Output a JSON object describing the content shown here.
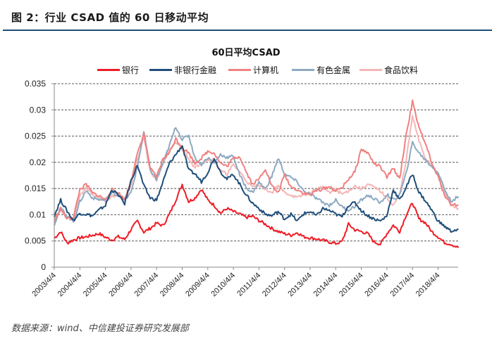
{
  "header": {
    "figure_title": "图 2：行业 CSAD 值的 60 日移动平均"
  },
  "footer": {
    "source": "数据来源：wind、中信建投证券研究发展部"
  },
  "chart_data": {
    "type": "line",
    "title": "60日平均CSAD",
    "xlabel": "",
    "ylabel": "",
    "ylim": [
      0,
      0.035
    ],
    "yticks": [
      "0",
      "0.005",
      "0.01",
      "0.015",
      "0.02",
      "0.025",
      "0.03",
      "0.035"
    ],
    "ytick_values": [
      0,
      0.005,
      0.01,
      0.015,
      0.02,
      0.025,
      0.03,
      0.035
    ],
    "xticks": [
      "2003/4/4",
      "2004/4/4",
      "2005/4/4",
      "2006/4/4",
      "2007/4/4",
      "2008/4/4",
      "2009/4/4",
      "2010/4/4",
      "2011/4/4",
      "2012/4/4",
      "2013/4/4",
      "2014/4/4",
      "2015/4/4",
      "2016/4/4",
      "2017/4/4",
      "2018/4/4"
    ],
    "x_unit": "years since 2003/4/4",
    "xlim": [
      0,
      15.8
    ],
    "grid": "horizontal dashed",
    "legend_position": "top",
    "x": [
      0,
      0.25,
      0.5,
      0.75,
      1,
      1.25,
      1.5,
      1.75,
      2,
      2.25,
      2.5,
      2.75,
      3,
      3.25,
      3.5,
      3.75,
      4,
      4.25,
      4.5,
      4.75,
      5,
      5.25,
      5.5,
      5.75,
      6,
      6.25,
      6.5,
      6.75,
      7,
      7.25,
      7.5,
      7.75,
      8,
      8.25,
      8.5,
      8.75,
      9,
      9.25,
      9.5,
      9.75,
      10,
      10.25,
      10.5,
      10.75,
      11,
      11.25,
      11.5,
      11.75,
      12,
      12.25,
      12.5,
      12.75,
      13,
      13.25,
      13.5,
      13.75,
      14,
      14.25,
      14.5,
      14.75,
      15,
      15.25,
      15.5,
      15.8
    ],
    "series": [
      {
        "name": "银行",
        "color": "#ee1c25",
        "values": [
          0.0055,
          0.0068,
          0.0046,
          0.0052,
          0.0056,
          0.0058,
          0.0061,
          0.0064,
          0.0057,
          0.0052,
          0.0058,
          0.0053,
          0.0072,
          0.0088,
          0.0067,
          0.0074,
          0.0084,
          0.0079,
          0.0101,
          0.0128,
          0.0158,
          0.0125,
          0.0132,
          0.0149,
          0.0128,
          0.0118,
          0.0103,
          0.0112,
          0.0106,
          0.0101,
          0.0095,
          0.0097,
          0.0089,
          0.0082,
          0.0074,
          0.0068,
          0.0064,
          0.0061,
          0.0066,
          0.0058,
          0.0056,
          0.0054,
          0.0051,
          0.0048,
          0.0045,
          0.0049,
          0.0082,
          0.0071,
          0.0068,
          0.0064,
          0.0048,
          0.0044,
          0.0064,
          0.008,
          0.0068,
          0.0099,
          0.0123,
          0.0092,
          0.0085,
          0.0068,
          0.0058,
          0.0047,
          0.0044,
          0.0037
        ]
      },
      {
        "name": "非银行金融",
        "color": "#1f4e79",
        "values": [
          0.0098,
          0.0128,
          0.0107,
          0.0089,
          0.0103,
          0.0101,
          0.0098,
          0.0109,
          0.0118,
          0.0148,
          0.0138,
          0.0121,
          0.0165,
          0.0195,
          0.0155,
          0.0132,
          0.0128,
          0.0163,
          0.0198,
          0.0215,
          0.0232,
          0.0185,
          0.0178,
          0.0163,
          0.0181,
          0.0208,
          0.0182,
          0.0168,
          0.0177,
          0.0158,
          0.0138,
          0.0122,
          0.0112,
          0.0101,
          0.0098,
          0.0106,
          0.0092,
          0.0101,
          0.0088,
          0.0102,
          0.0106,
          0.0098,
          0.0112,
          0.0108,
          0.0101,
          0.0096,
          0.0118,
          0.0123,
          0.0108,
          0.0098,
          0.0092,
          0.0088,
          0.0098,
          0.0148,
          0.0128,
          0.0152,
          0.0178,
          0.0143,
          0.0127,
          0.0109,
          0.0088,
          0.0078,
          0.0069,
          0.0072
        ]
      },
      {
        "name": "计算机",
        "color": "#f08080",
        "values": [
          0.0088,
          0.0112,
          0.0092,
          0.0095,
          0.0148,
          0.0158,
          0.0141,
          0.0136,
          0.0129,
          0.0148,
          0.0142,
          0.0129,
          0.0165,
          0.0216,
          0.0255,
          0.0188,
          0.0172,
          0.0207,
          0.0218,
          0.0245,
          0.0228,
          0.0218,
          0.0198,
          0.0208,
          0.0221,
          0.0218,
          0.0198,
          0.0192,
          0.0208,
          0.0211,
          0.0182,
          0.0158,
          0.0168,
          0.0188,
          0.0155,
          0.0142,
          0.0176,
          0.0153,
          0.0148,
          0.0141,
          0.0138,
          0.0146,
          0.0149,
          0.0154,
          0.0145,
          0.0152,
          0.0168,
          0.0182,
          0.0225,
          0.0218,
          0.0198,
          0.0191,
          0.0171,
          0.0189,
          0.0168,
          0.0252,
          0.0316,
          0.0265,
          0.0239,
          0.0198,
          0.0172,
          0.0138,
          0.0121,
          0.0118
        ]
      },
      {
        "name": "有色金属",
        "color": "#8ea9c1",
        "values": [
          0.0082,
          0.0113,
          0.0098,
          0.0087,
          0.0125,
          0.0146,
          0.0132,
          0.0129,
          0.0128,
          0.0141,
          0.0138,
          0.0128,
          0.0142,
          0.0192,
          0.0258,
          0.0186,
          0.0167,
          0.0198,
          0.0232,
          0.0268,
          0.0243,
          0.0252,
          0.0208,
          0.0196,
          0.0209,
          0.0198,
          0.0215,
          0.0209,
          0.0212,
          0.0175,
          0.0152,
          0.0142,
          0.0162,
          0.0149,
          0.0173,
          0.0208,
          0.0178,
          0.0171,
          0.0162,
          0.0145,
          0.0139,
          0.0131,
          0.0123,
          0.0118,
          0.0128,
          0.0115,
          0.0109,
          0.0116,
          0.0128,
          0.0137,
          0.0131,
          0.0122,
          0.0139,
          0.0128,
          0.0138,
          0.0178,
          0.0238,
          0.0218,
          0.0205,
          0.0192,
          0.0181,
          0.0149,
          0.0126,
          0.0135
        ]
      },
      {
        "name": "食品饮料",
        "color": "#f4b6b6",
        "values": [
          0.0085,
          0.0108,
          0.0095,
          0.0091,
          0.0137,
          0.0152,
          0.0138,
          0.0133,
          0.0126,
          0.0135,
          0.0139,
          0.0131,
          0.0158,
          0.0205,
          0.0248,
          0.0182,
          0.0166,
          0.0199,
          0.0221,
          0.0238,
          0.0225,
          0.0209,
          0.0188,
          0.0201,
          0.0205,
          0.0206,
          0.0183,
          0.0178,
          0.0195,
          0.0182,
          0.0165,
          0.0152,
          0.0158,
          0.0149,
          0.0142,
          0.0156,
          0.0142,
          0.0138,
          0.0132,
          0.0138,
          0.0141,
          0.0149,
          0.0153,
          0.0143,
          0.0148,
          0.0139,
          0.0146,
          0.0155,
          0.0149,
          0.0158,
          0.0152,
          0.0145,
          0.0132,
          0.0118,
          0.0139,
          0.0203,
          0.0288,
          0.0241,
          0.0208,
          0.0195,
          0.0178,
          0.0142,
          0.0118,
          0.0112
        ]
      }
    ],
    "tail": {
      "x": [
        15.8
      ],
      "note": "series continue to right edge"
    }
  }
}
